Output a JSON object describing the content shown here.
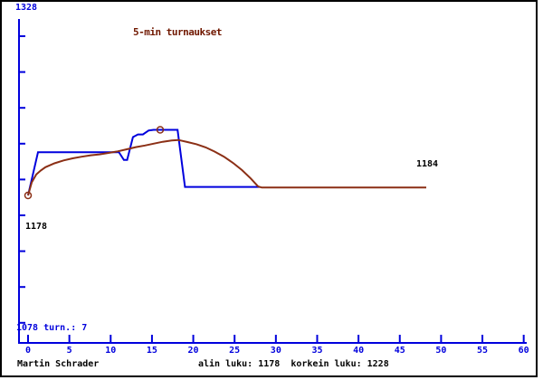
{
  "chart": {
    "title": "5-min turnaukset",
    "y_axis_top_label": "1328",
    "bottom_left_label": "1078 turn.: 7",
    "start_point_label": "1178",
    "end_value_label": "1184"
  },
  "footer": {
    "player_name": "Martin Schrader",
    "stats_text": "alin luku: 1178  korkein luku: 1228"
  },
  "chart_data": {
    "type": "line",
    "title": "5-min turnaukset",
    "axis_color": "#0000dd",
    "x_range": [
      0,
      60
    ],
    "x_ticks": [
      0,
      5,
      10,
      15,
      20,
      25,
      30,
      35,
      40,
      45,
      50,
      55,
      60
    ],
    "y_axis_endpoint_labels": {
      "top": "1328",
      "bottom": "1078"
    },
    "y_unlabeled_tick_count": 9,
    "tournaments_count": 7,
    "lowest_rating": 1178,
    "highest_rating": 1228,
    "final_rating": 1184,
    "series": [
      {
        "name": "rating",
        "color": "#0000dd",
        "points": [
          [
            0,
            1178
          ],
          [
            1.2,
            1211
          ],
          [
            11.0,
            1211
          ],
          [
            11.6,
            1205
          ],
          [
            12.0,
            1205
          ],
          [
            12.7,
            1222.5
          ],
          [
            13.3,
            1224.5
          ],
          [
            13.9,
            1224.5
          ],
          [
            14.6,
            1227.5
          ],
          [
            15.2,
            1228
          ],
          [
            18.1,
            1228
          ],
          [
            19.0,
            1184.5
          ],
          [
            28.05,
            1184.5
          ]
        ]
      },
      {
        "name": "trend",
        "color": "#8b2f15",
        "points": [
          [
            0,
            1178
          ],
          [
            0.45,
            1188
          ],
          [
            1.0,
            1194
          ],
          [
            1.55,
            1197
          ],
          [
            2.1,
            1199.5
          ],
          [
            3.2,
            1202.5
          ],
          [
            4.3,
            1204.7
          ],
          [
            5.4,
            1206.3
          ],
          [
            6.5,
            1207.5
          ],
          [
            7.6,
            1208.6
          ],
          [
            8.65,
            1209.3
          ],
          [
            9.75,
            1210.4
          ],
          [
            10.85,
            1211.6
          ],
          [
            11.95,
            1213.2
          ],
          [
            13.05,
            1214.8
          ],
          [
            14.15,
            1216.1
          ],
          [
            15.25,
            1217.5
          ],
          [
            16.3,
            1218.9
          ],
          [
            17.4,
            1219.9
          ],
          [
            18.2,
            1220.3
          ],
          [
            19.3,
            1218.7
          ],
          [
            20.4,
            1217
          ],
          [
            21.5,
            1214.6
          ],
          [
            22.6,
            1211.4
          ],
          [
            23.7,
            1207.6
          ],
          [
            24.8,
            1202.8
          ],
          [
            25.9,
            1197.3
          ],
          [
            26.95,
            1191
          ],
          [
            27.85,
            1184.8
          ],
          [
            28.3,
            1184
          ],
          [
            48.2,
            1184
          ]
        ]
      }
    ],
    "markers": {
      "color": "#8b2f15",
      "points": [
        [
          0,
          1178
        ],
        [
          16,
          1228
        ]
      ]
    }
  }
}
